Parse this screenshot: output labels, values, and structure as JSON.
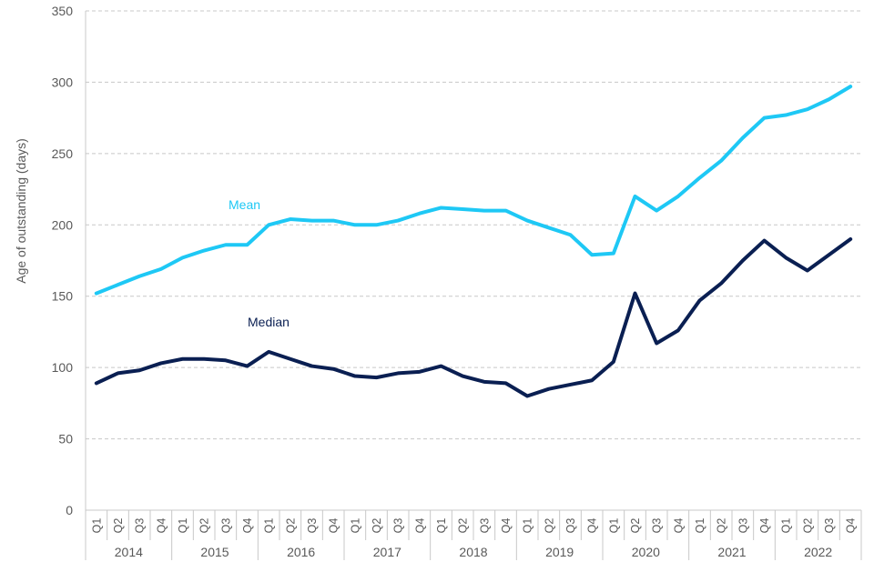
{
  "chart_data": {
    "type": "line",
    "title": "",
    "xlabel": "",
    "ylabel": "Age of outstanding (days)",
    "ylim": [
      0,
      350
    ],
    "yticks": [
      0,
      50,
      100,
      150,
      200,
      250,
      300,
      350
    ],
    "grid": true,
    "years": [
      "2014",
      "2015",
      "2016",
      "2017",
      "2018",
      "2019",
      "2020",
      "2021",
      "2022"
    ],
    "quarters": [
      "Q1",
      "Q2",
      "Q3",
      "Q4"
    ],
    "series": [
      {
        "name": "Mean",
        "color": "#1ec8f5",
        "values": [
          152,
          158,
          164,
          169,
          177,
          182,
          186,
          186,
          200,
          204,
          203,
          203,
          200,
          200,
          203,
          208,
          212,
          211,
          210,
          210,
          203,
          198,
          193,
          179,
          180,
          220,
          210,
          220,
          233,
          245,
          261,
          275,
          277,
          281,
          288,
          297
        ]
      },
      {
        "name": "Median",
        "color": "#0a1f52",
        "values": [
          89,
          96,
          98,
          103,
          106,
          106,
          105,
          101,
          111,
          106,
          101,
          99,
          94,
          93,
          96,
          97,
          101,
          94,
          90,
          89,
          80,
          85,
          88,
          91,
          104,
          152,
          117,
          126,
          147,
          159,
          175,
          189,
          177,
          168,
          179,
          190
        ]
      }
    ]
  }
}
